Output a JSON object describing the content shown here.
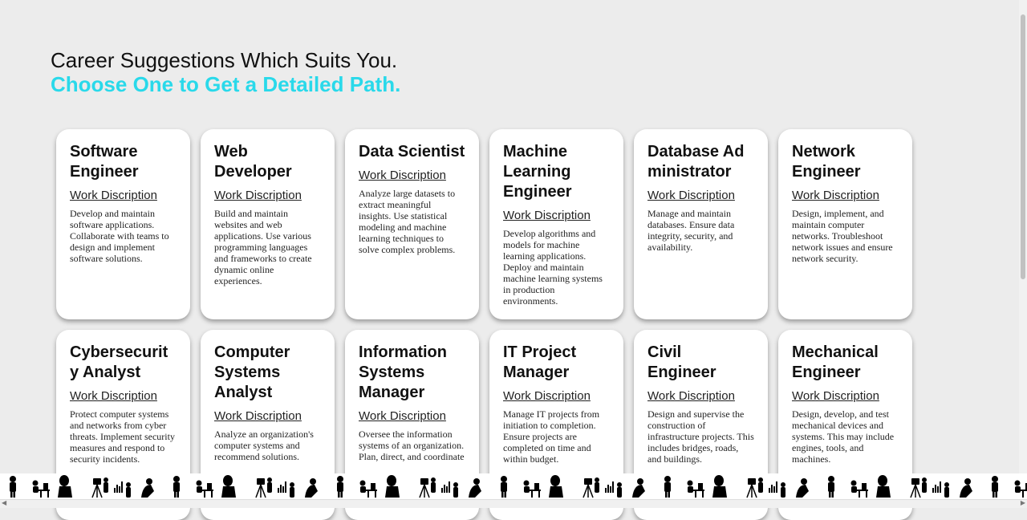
{
  "heading": {
    "line1": "Career Suggestions Which Suits You.",
    "line2": "Choose One to Get a Detailed Path."
  },
  "colors": {
    "accent": "#29d9ea",
    "card_bg": "#ffffff",
    "page_bg": "#ececec"
  },
  "cards": [
    {
      "title": "Software Engineer",
      "link": "Work Discription",
      "description": "Develop and maintain software applications. Collaborate with teams to design and implement software solutions."
    },
    {
      "title": "Web Developer",
      "link": "Work Discription",
      "description": "Build and maintain websites and web applications. Use various programming languages and frameworks to create dynamic online experiences."
    },
    {
      "title": "Data Scientist",
      "link": "Work Discription",
      "description": "Analyze large datasets to extract meaningful insights. Use statistical modeling and machine learning techniques to solve complex problems."
    },
    {
      "title": "Machine Learning Engineer",
      "link": "Work Discription",
      "description": "Develop algorithms and models for machine learning applications. Deploy and maintain machine learning systems in production environments."
    },
    {
      "title": "Database Administrator",
      "link": "Work Discription",
      "description": "Manage and maintain databases. Ensure data integrity, security, and availability."
    },
    {
      "title": "Network Engineer",
      "link": "Work Discription",
      "description": "Design, implement, and maintain computer networks. Troubleshoot network issues and ensure network security."
    },
    {
      "title": "Cybersecurity Analyst",
      "link": "Work Discription",
      "description": "Protect computer systems and networks from cyber threats. Implement security measures and respond to security incidents."
    },
    {
      "title": "Computer Systems Analyst",
      "link": "Work Discription",
      "description": "Analyze an organization's computer systems and recommend solutions."
    },
    {
      "title": "Information Systems Manager",
      "link": "Work Discription",
      "description": "Oversee the information systems of an organization. Plan, direct, and coordinate"
    },
    {
      "title": "IT Project Manager",
      "link": "Work Discription",
      "description": "Manage IT projects from initiation to completion. Ensure projects are completed on time and within budget."
    },
    {
      "title": "Civil Engineer",
      "link": "Work Discription",
      "description": "Design and supervise the construction of infrastructure projects. This includes bridges, roads, and buildings."
    },
    {
      "title": "Mechanical Engineer",
      "link": "Work Discription",
      "description": "Design, develop, and test mechanical devices and systems. This may include engines, tools, and machines."
    }
  ],
  "footer": {
    "icon": "people-silhouettes-strip"
  }
}
